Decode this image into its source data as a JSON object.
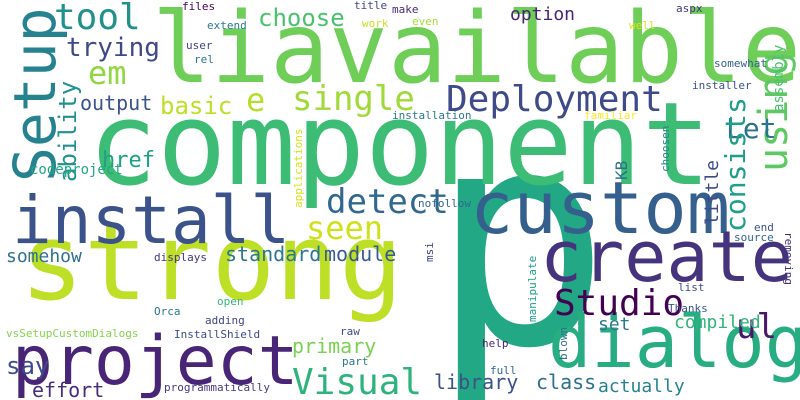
{
  "words": {
    "p": {
      "text": "p",
      "color": "#22a884"
    },
    "component": {
      "text": "component",
      "color": "#3cbc75"
    },
    "strong": {
      "text": "strong",
      "color": "#bddf26"
    },
    "liavailable": {
      "text": "liavailable",
      "color": "#6ece58"
    },
    "custom": {
      "text": "custom",
      "color": "#355f8d"
    },
    "create": {
      "text": "create",
      "color": "#46337e"
    },
    "dialog": {
      "text": "dialog",
      "color": "#27ad81"
    },
    "project": {
      "text": "project",
      "color": "#482576"
    },
    "install": {
      "text": "install",
      "color": "#3b528b"
    },
    "setup": {
      "text": "Setup",
      "color": "#26828e"
    },
    "deployment": {
      "text": "Deployment",
      "color": "#3e4a89"
    },
    "studio": {
      "text": "Studio",
      "color": "#440154"
    },
    "visual": {
      "text": "Visual",
      "color": "#2eb37c"
    },
    "seen": {
      "text": "seen",
      "color": "#d0e11c"
    },
    "detect": {
      "text": "detect",
      "color": "#31688e"
    },
    "using": {
      "text": "using",
      "color": "#5ec962"
    },
    "single": {
      "text": "single",
      "color": "#a0da39"
    },
    "ul": {
      "text": "ul",
      "color": "#48186a"
    },
    "tool": {
      "text": "tool",
      "color": "#21918c"
    },
    "em": {
      "text": "em",
      "color": "#90d743"
    },
    "choose": {
      "text": "choose",
      "color": "#4ac16d"
    },
    "trying": {
      "text": "trying",
      "color": "#3e4989"
    },
    "let": {
      "text": "Let",
      "color": "#2c728e"
    },
    "basic": {
      "text": "basic",
      "color": "#bddf26"
    },
    "e": {
      "text": "e",
      "color": "#b5de2b"
    },
    "consists": {
      "text": "consists",
      "color": "#1f9e89"
    },
    "ability": {
      "text": "ability",
      "color": "#21918c"
    },
    "output": {
      "text": "output",
      "color": "#3b528b"
    },
    "href": {
      "text": "href",
      "color": "#1fa187"
    },
    "option": {
      "text": "option",
      "color": "#482475"
    },
    "say": {
      "text": "say",
      "color": "#3e4a89"
    },
    "module": {
      "text": "module",
      "color": "#365c8d"
    },
    "standard": {
      "text": "standard",
      "color": "#2a788e"
    },
    "primary": {
      "text": "primary",
      "color": "#7ad151"
    },
    "compiled": {
      "text": "compiled",
      "color": "#2fb47c"
    },
    "library": {
      "text": "library",
      "color": "#3b528b"
    },
    "class": {
      "text": "class",
      "color": "#2d708e"
    },
    "actually": {
      "text": "actually",
      "color": "#25838e"
    },
    "effort": {
      "text": "effort",
      "color": "#472d7b"
    },
    "somehow": {
      "text": "somehow",
      "color": "#2c728e"
    },
    "set": {
      "text": "set",
      "color": "#2a788e"
    },
    "little": {
      "text": "little",
      "color": "#3e4989"
    },
    "kb": {
      "text": "KB",
      "color": "#2d708e"
    },
    "assembly": {
      "text": "assembly",
      "color": "#4ac16d"
    },
    "codeproject": {
      "text": "codeproject",
      "color": "#22a884"
    },
    "installation": {
      "text": "installation",
      "color": "#2a788e"
    },
    "familiar": {
      "text": "familiar",
      "color": "#fde725"
    },
    "installer": {
      "text": "installer",
      "color": "#3b528b"
    },
    "somewhat": {
      "text": "somewhat",
      "color": "#355f8d"
    },
    "nofollow": {
      "text": "nofollow",
      "color": "#31688e"
    },
    "displays": {
      "text": "displays",
      "color": "#46327e"
    },
    "applications": {
      "text": "applications",
      "color": "#d8e219"
    },
    "choosen": {
      "text": "choosen",
      "color": "#26828e"
    },
    "files": {
      "text": "files",
      "color": "#440154"
    },
    "title": {
      "text": "title",
      "color": "#414487"
    },
    "make": {
      "text": "make",
      "color": "#482878"
    },
    "aspx": {
      "text": "aspx",
      "color": "#46337e"
    },
    "extend": {
      "text": "extend",
      "color": "#2a788e"
    },
    "work": {
      "text": "work",
      "color": "#c8e020"
    },
    "even": {
      "text": "even",
      "color": "#a5db36"
    },
    "well": {
      "text": "well",
      "color": "#dde318"
    },
    "user": {
      "text": "user",
      "color": "#414487"
    },
    "rel": {
      "text": "rel",
      "color": "#2a788e"
    },
    "end": {
      "text": "end",
      "color": "#3b528b"
    },
    "source": {
      "text": "source",
      "color": "#31688e"
    },
    "removing": {
      "text": "removing",
      "color": "#472f7d"
    },
    "msi": {
      "text": "msi",
      "color": "#414487"
    },
    "manipulate": {
      "text": "manipulate",
      "color": "#1f9e89"
    },
    "list": {
      "text": "list",
      "color": "#3e4a89"
    },
    "thanks": {
      "text": "Thanks",
      "color": "#3b528b"
    },
    "orca": {
      "text": "Orca",
      "color": "#2a788e"
    },
    "open": {
      "text": "open",
      "color": "#35b779"
    },
    "adding": {
      "text": "adding",
      "color": "#414487"
    },
    "vssetup": {
      "text": "vsSetupCustomDialogs",
      "color": "#84d44b"
    },
    "installshield": {
      "text": "InstallShield",
      "color": "#3e4a89"
    },
    "raw": {
      "text": "raw",
      "color": "#3e4a89"
    },
    "part": {
      "text": "part",
      "color": "#2a788e"
    },
    "help": {
      "text": "help",
      "color": "#482475"
    },
    "blown": {
      "text": "blown",
      "color": "#2c728e"
    },
    "full": {
      "text": "full",
      "color": "#31688e"
    },
    "programmatically": {
      "text": "programmatically",
      "color": "#443983"
    }
  }
}
